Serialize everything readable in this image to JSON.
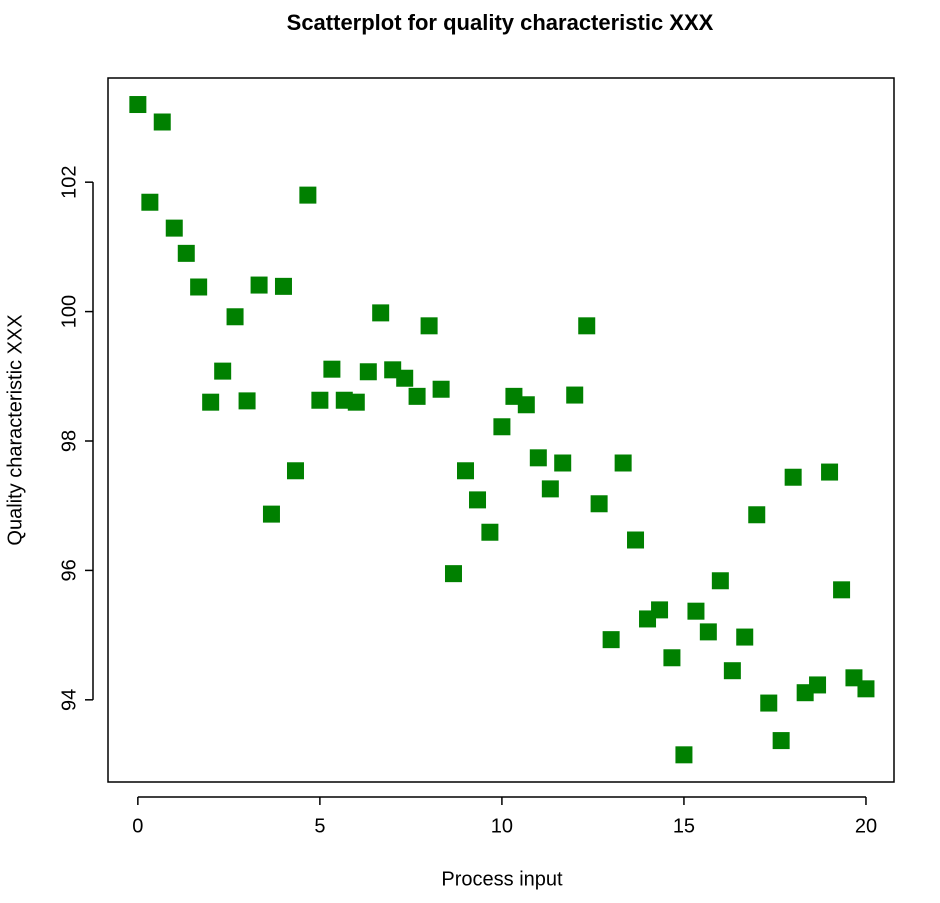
{
  "chart_data": {
    "type": "scatter",
    "title": "Scatterplot for quality characteristic XXX",
    "x_label": "Process input",
    "y_label": "Quality characteristic XXX",
    "color": "#008000",
    "xlim": [
      -0.82,
      20.77
    ],
    "ylim": [
      92.73,
      103.61
    ],
    "xticks": [
      0,
      5,
      10,
      15,
      20
    ],
    "yticks": [
      94,
      96,
      98,
      100,
      102
    ],
    "x": [
      0,
      0.33,
      0.67,
      1,
      1.33,
      1.67,
      2,
      2.33,
      2.67,
      3,
      3.33,
      3.67,
      4,
      4.33,
      4.67,
      5,
      5.33,
      5.67,
      6,
      6.33,
      6.67,
      7,
      7.33,
      7.67,
      8,
      8.33,
      8.67,
      9,
      9.33,
      9.67,
      10,
      10.33,
      10.67,
      11,
      11.33,
      11.67,
      12,
      12.33,
      12.67,
      13,
      13.33,
      13.67,
      14,
      14.33,
      14.67,
      15,
      15.33,
      15.67,
      16,
      16.33,
      16.67,
      17,
      17.33,
      17.67,
      18,
      18.33,
      18.67,
      19,
      19.33,
      19.67,
      20
    ],
    "values": [
      103.2,
      101.69,
      102.93,
      101.29,
      100.9,
      100.38,
      98.6,
      99.08,
      99.92,
      98.62,
      100.41,
      96.87,
      100.39,
      97.54,
      101.8,
      98.63,
      99.11,
      98.63,
      98.6,
      99.07,
      99.98,
      99.1,
      98.97,
      98.69,
      99.78,
      98.8,
      95.95,
      97.54,
      97.09,
      96.59,
      98.22,
      98.69,
      98.56,
      97.74,
      97.26,
      97.66,
      98.71,
      99.78,
      97.03,
      94.93,
      97.66,
      96.47,
      95.25,
      95.39,
      94.65,
      93.15,
      95.37,
      95.05,
      95.84,
      94.45,
      94.97,
      96.86,
      93.95,
      93.37,
      97.44,
      94.11,
      94.23,
      97.52,
      95.7,
      94.34,
      94.17
    ]
  }
}
